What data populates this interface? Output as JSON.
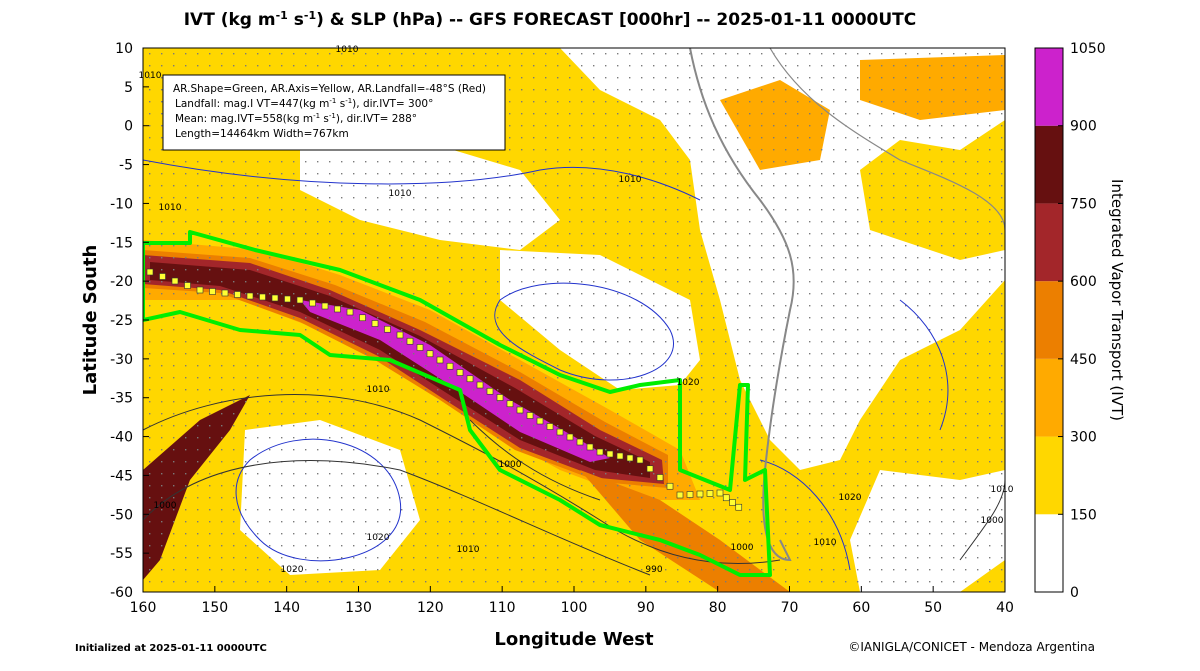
{
  "header": {
    "title": [
      "IVT (kg m",
      "-1",
      " s",
      "-1",
      ") & SLP (hPa) -- GFS FORECAST [000hr] -- 2025-01-11 0000UTC"
    ]
  },
  "x_axis": {
    "label": "Longitude West",
    "lim": [
      160,
      40
    ],
    "ticks": [
      160,
      150,
      140,
      130,
      120,
      110,
      100,
      90,
      80,
      70,
      60,
      50,
      40
    ]
  },
  "y_axis": {
    "label": "Latitude South",
    "lim": [
      10,
      -60
    ],
    "ticks": [
      10,
      5,
      0,
      -5,
      -10,
      -15,
      -20,
      -25,
      -30,
      -35,
      -40,
      -45,
      -50,
      -55,
      -60
    ]
  },
  "colorbar": {
    "label": "Integrated Vapor Transport (IVT)",
    "lim": [
      0,
      1050
    ],
    "ticks": [
      0,
      150,
      300,
      450,
      600,
      750,
      900,
      1050
    ],
    "colors": [
      "#ffffff",
      "#ffd700",
      "#ffaa00",
      "#ec7f00",
      "#a3262a",
      "#661010",
      "#cc22cc"
    ]
  },
  "info_box": {
    "lines": [
      [
        "AR.Shape=Green, AR.Axis=Yellow, AR.Landfall=-48°S (Red)"
      ],
      [
        "Landfall: mag.I VT=447(kg m",
        "-1",
        " s",
        "-1",
        "), dir.IVT= 300°"
      ],
      [
        "Mean: mag.IVT=558(kg m",
        "-1",
        " s",
        "-1",
        "), dir.IVT= 288°"
      ],
      [
        "Length=14464km   Width=767km"
      ]
    ]
  },
  "contour_labels": [
    "1010",
    "1010",
    "1010",
    "1010",
    "1010",
    "1020",
    "1010",
    "1000",
    "1020",
    "1020",
    "1010",
    "1000",
    "990",
    "1000",
    "1010",
    "1020",
    "1010",
    "1000"
  ],
  "footer": {
    "left": "Initialized at 2025-01-11 0000UTC",
    "right": "©IANIGLA/CONICET - Mendoza Argentina"
  }
}
